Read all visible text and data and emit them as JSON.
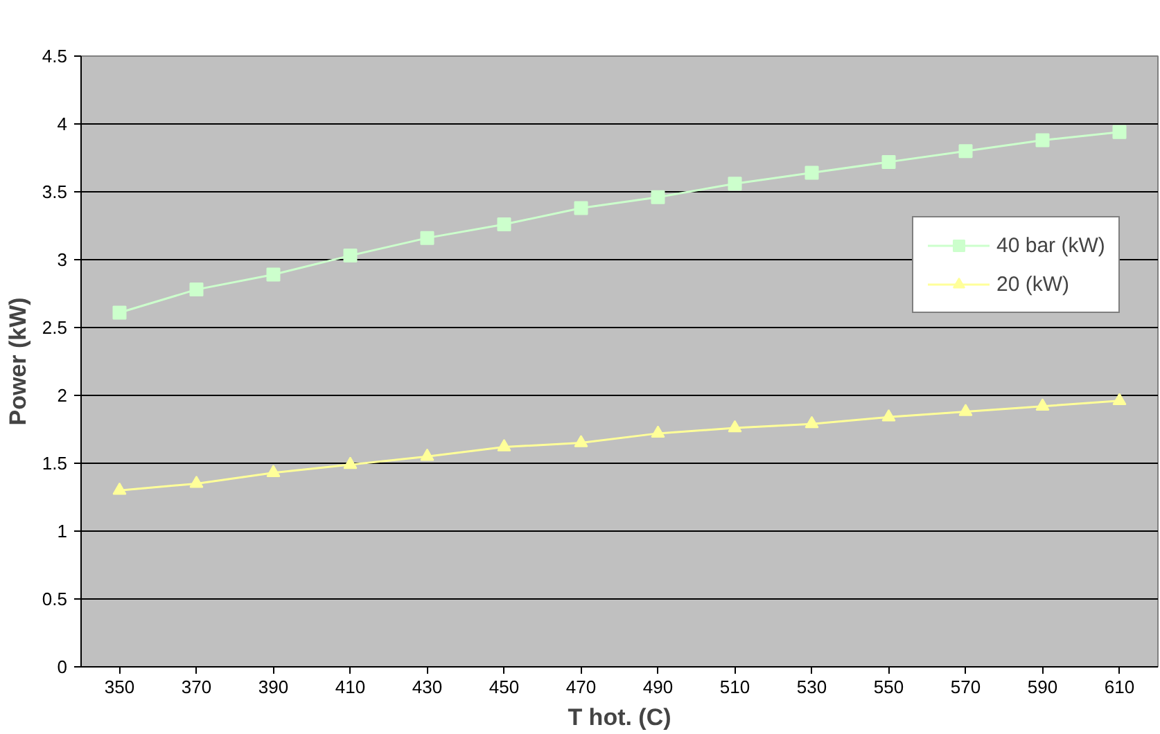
{
  "chart_data": {
    "type": "line",
    "categories": [
      "350",
      "370",
      "390",
      "410",
      "430",
      "450",
      "470",
      "490",
      "510",
      "530",
      "550",
      "570",
      "590",
      "610"
    ],
    "series": [
      {
        "name": "40 bar (kW)",
        "color": "#ccffcc",
        "marker": "square",
        "values": [
          2.61,
          2.78,
          2.89,
          3.03,
          3.16,
          3.26,
          3.38,
          3.46,
          3.56,
          3.64,
          3.72,
          3.8,
          3.88,
          3.94
        ]
      },
      {
        "name": "20 (kW)",
        "color": "#ffff99",
        "marker": "triangle",
        "values": [
          1.3,
          1.35,
          1.43,
          1.49,
          1.55,
          1.62,
          1.65,
          1.72,
          1.76,
          1.79,
          1.84,
          1.88,
          1.92,
          1.96
        ]
      }
    ],
    "xlabel": "T hot. (C)",
    "ylabel": "Power (kW)",
    "ylim": [
      0,
      4.5
    ],
    "yticks": [
      0,
      0.5,
      1,
      1.5,
      2,
      2.5,
      3,
      3.5,
      4,
      4.5
    ],
    "grid": "y",
    "legend": "right",
    "line_style": "solid"
  }
}
